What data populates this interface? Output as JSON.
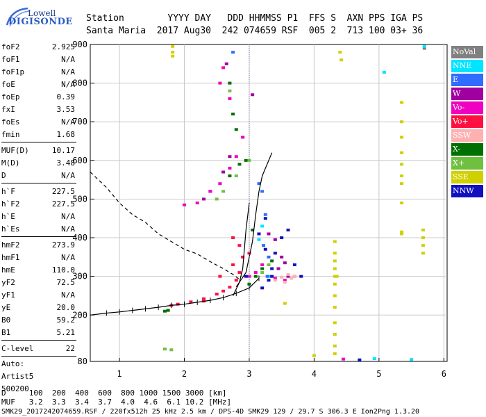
{
  "logo": {
    "brand": "Lowell",
    "product": "DIGISONDE"
  },
  "header": {
    "labels": "Station        YYYY DAY   DDD HHMMSS P1  FFS S  AXN PPS IGA PS",
    "values": "Santa Maria  2017 Aug30  242 074659 RSF  005 2  713 100 03+ 36"
  },
  "params": {
    "group1": [
      {
        "name": "foF2",
        "value": "2.925"
      },
      {
        "name": "foF1",
        "value": "N/A"
      },
      {
        "name": "foF1p",
        "value": "N/A"
      },
      {
        "name": "foE",
        "value": "N/A"
      },
      {
        "name": "foEp",
        "value": "0.39"
      },
      {
        "name": "fxI",
        "value": "3.53"
      },
      {
        "name": "foEs",
        "value": "N/A"
      },
      {
        "name": "fmin",
        "value": "1.68"
      }
    ],
    "group2": [
      {
        "name": "MUF(D)",
        "value": "10.17"
      },
      {
        "name": "M(D)",
        "value": "3.48"
      },
      {
        "name": "D",
        "value": "N/A"
      }
    ],
    "group3": [
      {
        "name": "h`F",
        "value": "227.5"
      },
      {
        "name": "h`F2",
        "value": "227.5"
      },
      {
        "name": "h`E",
        "value": "N/A"
      },
      {
        "name": "h`Es",
        "value": "N/A"
      }
    ],
    "group4": [
      {
        "name": "hmF2",
        "value": "273.9"
      },
      {
        "name": "hmF1",
        "value": "N/A"
      },
      {
        "name": "hmE",
        "value": "110.0"
      },
      {
        "name": "yF2",
        "value": "72.5"
      },
      {
        "name": "yF1",
        "value": "N/A"
      },
      {
        "name": "yE",
        "value": "20.0"
      },
      {
        "name": "B0",
        "value": "59.2"
      },
      {
        "name": "B1",
        "value": "5.21"
      }
    ],
    "group5": [
      {
        "name": "C-level",
        "value": "22"
      }
    ],
    "auto": [
      "Auto:",
      "Artist5",
      "500200"
    ]
  },
  "legend": [
    {
      "label": "NoVal",
      "color": "#808080"
    },
    {
      "label": "NNE",
      "color": "#00e5ff"
    },
    {
      "label": "E",
      "color": "#2f6cff"
    },
    {
      "label": "W",
      "color": "#a000a0"
    },
    {
      "label": "Vo-",
      "color": "#f000c0"
    },
    {
      "label": "Vo+",
      "color": "#ff1040"
    },
    {
      "label": "SSW",
      "color": "#ffb0b0"
    },
    {
      "label": "X-",
      "color": "#007000"
    },
    {
      "label": "X+",
      "color": "#70c040"
    },
    {
      "label": "SSE",
      "color": "#d0d000"
    },
    {
      "label": "NNW",
      "color": "#1010c0"
    }
  ],
  "footer": {
    "d_row": "D     100  200  400  600  800 1000 1500 3000 [km]",
    "muf_row": "MUF   3.2  3.3  3.4  3.7  4.0  4.6  6.1 10.2 [MHz]",
    "info": "SMK29_2017242074659.RSF / 220fx512h 25 kHz 2.5 km / DPS-4D SMK29 129 / 29.7 S 306.3 E Ion2Png 1.3.20"
  },
  "chart_data": {
    "type": "scatter",
    "xlabel": "",
    "ylabel": "",
    "xlim": [
      0.55,
      6.05
    ],
    "ylim": [
      80,
      900
    ],
    "xticks": [
      1,
      2,
      3,
      4,
      5,
      6
    ],
    "yticks": [
      80,
      200,
      300,
      400,
      500,
      600,
      700,
      800,
      900
    ],
    "grid": true,
    "series": [
      {
        "name": "NoVal",
        "color": "#808080",
        "points": [
          [
            5.7,
            890
          ]
        ]
      },
      {
        "name": "NNE",
        "color": "#00e5ff",
        "points": [
          [
            5.7,
            895
          ],
          [
            5.08,
            828
          ],
          [
            3.2,
            430
          ],
          [
            3.15,
            395
          ],
          [
            3.3,
            300
          ],
          [
            4.93,
            87
          ],
          [
            5.5,
            85
          ]
        ]
      },
      {
        "name": "E",
        "color": "#2f6cff",
        "points": [
          [
            3.15,
            540
          ],
          [
            3.2,
            520
          ],
          [
            3.25,
            460
          ],
          [
            3.22,
            380
          ],
          [
            3.3,
            350
          ],
          [
            2.75,
            880
          ],
          [
            3.28,
            300
          ]
        ]
      },
      {
        "name": "W",
        "color": "#a000a0",
        "points": [
          [
            3.3,
            410
          ],
          [
            3.4,
            395
          ],
          [
            3.5,
            350
          ],
          [
            3.45,
            320
          ],
          [
            3.6,
            300
          ],
          [
            2.3,
            500
          ],
          [
            2.4,
            520
          ],
          [
            2.6,
            570
          ],
          [
            2.7,
            610
          ],
          [
            2.9,
            660
          ],
          [
            2.65,
            850
          ],
          [
            3.05,
            770
          ],
          [
            3.55,
            335
          ]
        ]
      },
      {
        "name": "Vo-",
        "color": "#f000c0",
        "points": [
          [
            2.0,
            485
          ],
          [
            2.2,
            490
          ],
          [
            2.4,
            520
          ],
          [
            2.55,
            540
          ],
          [
            2.7,
            580
          ],
          [
            2.8,
            610
          ],
          [
            2.9,
            660
          ],
          [
            2.7,
            760
          ],
          [
            2.55,
            800
          ],
          [
            2.6,
            840
          ],
          [
            3.0,
            300
          ],
          [
            3.1,
            310
          ],
          [
            3.2,
            330
          ],
          [
            3.4,
            295
          ],
          [
            3.55,
            290
          ],
          [
            3.7,
            300
          ],
          [
            4.45,
            86
          ]
        ]
      },
      {
        "name": "Vo+",
        "color": "#ff1040",
        "points": [
          [
            1.9,
            228
          ],
          [
            2.1,
            234
          ],
          [
            2.3,
            242
          ],
          [
            2.5,
            254
          ],
          [
            2.6,
            262
          ],
          [
            2.7,
            272
          ],
          [
            2.8,
            290
          ],
          [
            2.85,
            310
          ],
          [
            2.75,
            330
          ],
          [
            2.9,
            350
          ],
          [
            3.0,
            360
          ],
          [
            1.8,
            225
          ],
          [
            2.3,
            236
          ],
          [
            2.55,
            300
          ],
          [
            2.75,
            400
          ],
          [
            2.85,
            380
          ]
        ]
      },
      {
        "name": "SSW",
        "color": "#ffb0b0",
        "points": [
          [
            3.4,
            290
          ],
          [
            3.5,
            298
          ],
          [
            3.6,
            305
          ],
          [
            3.7,
            300
          ],
          [
            3.55,
            285
          ],
          [
            3.65,
            295
          ]
        ]
      },
      {
        "name": "X-",
        "color": "#007000",
        "points": [
          [
            2.7,
            560
          ],
          [
            2.85,
            590
          ],
          [
            2.95,
            600
          ],
          [
            2.8,
            680
          ],
          [
            2.75,
            720
          ],
          [
            2.7,
            800
          ],
          [
            3.0,
            280
          ],
          [
            3.1,
            300
          ],
          [
            3.2,
            320
          ],
          [
            1.7,
            210
          ],
          [
            1.75,
            212
          ],
          [
            3.35,
            340
          ],
          [
            3.05,
            420
          ]
        ]
      },
      {
        "name": "X+",
        "color": "#70c040",
        "points": [
          [
            2.6,
            520
          ],
          [
            2.8,
            560
          ],
          [
            3.0,
            600
          ],
          [
            2.7,
            780
          ],
          [
            2.5,
            500
          ],
          [
            3.2,
            310
          ],
          [
            3.3,
            330
          ],
          [
            1.7,
            112
          ],
          [
            1.8,
            110
          ]
        ]
      },
      {
        "name": "SSE",
        "color": "#d0d000",
        "points": [
          [
            1.82,
            895
          ],
          [
            1.82,
            880
          ],
          [
            1.82,
            870
          ],
          [
            4.32,
            390
          ],
          [
            4.32,
            360
          ],
          [
            4.32,
            340
          ],
          [
            4.32,
            320
          ],
          [
            4.32,
            300
          ],
          [
            4.32,
            280
          ],
          [
            4.32,
            250
          ],
          [
            4.32,
            220
          ],
          [
            4.32,
            180
          ],
          [
            4.32,
            150
          ],
          [
            4.32,
            120
          ],
          [
            4.32,
            100
          ],
          [
            4.35,
            300
          ],
          [
            5.35,
            750
          ],
          [
            5.35,
            700
          ],
          [
            5.35,
            660
          ],
          [
            5.35,
            620
          ],
          [
            5.35,
            590
          ],
          [
            5.35,
            560
          ],
          [
            5.35,
            540
          ],
          [
            5.35,
            490
          ],
          [
            5.35,
            415
          ],
          [
            5.35,
            410
          ],
          [
            5.68,
            420
          ],
          [
            5.68,
            400
          ],
          [
            5.68,
            380
          ],
          [
            5.68,
            360
          ],
          [
            3.55,
            230
          ],
          [
            4.4,
            880
          ],
          [
            4.42,
            860
          ],
          [
            4.0,
            95
          ]
        ]
      },
      {
        "name": "NNW",
        "color": "#1010c0",
        "points": [
          [
            3.2,
            270
          ],
          [
            3.3,
            290
          ],
          [
            3.35,
            320
          ],
          [
            3.4,
            360
          ],
          [
            3.5,
            400
          ],
          [
            3.6,
            420
          ],
          [
            3.15,
            410
          ],
          [
            3.25,
            370
          ],
          [
            3.35,
            300
          ],
          [
            3.7,
            330
          ],
          [
            3.8,
            300
          ],
          [
            3.25,
            450
          ],
          [
            2.95,
            300
          ],
          [
            4.7,
            84
          ]
        ]
      }
    ],
    "curves": [
      {
        "name": "virtual-height trace",
        "style": "solid-ticked",
        "points": [
          [
            0.55,
            200
          ],
          [
            0.8,
            205
          ],
          [
            1.0,
            208
          ],
          [
            1.2,
            212
          ],
          [
            1.4,
            216
          ],
          [
            1.6,
            220
          ],
          [
            1.8,
            225
          ],
          [
            2.0,
            228
          ],
          [
            2.2,
            233
          ],
          [
            2.4,
            238
          ],
          [
            2.6,
            245
          ],
          [
            2.8,
            256
          ],
          [
            3.0,
            270
          ],
          [
            3.15,
            295
          ]
        ]
      },
      {
        "name": "vertical extension",
        "style": "solid",
        "points": [
          [
            2.75,
            250
          ],
          [
            2.85,
            285
          ],
          [
            2.9,
            320
          ],
          [
            2.95,
            420
          ],
          [
            3.0,
            490
          ]
        ]
      },
      {
        "name": "upper trace",
        "style": "solid",
        "points": [
          [
            2.8,
            273
          ],
          [
            2.95,
            310
          ],
          [
            3.05,
            390
          ],
          [
            3.1,
            460
          ],
          [
            3.15,
            520
          ],
          [
            3.2,
            560
          ],
          [
            3.35,
            620
          ]
        ]
      },
      {
        "name": "electron density profile",
        "style": "dashed",
        "points": [
          [
            0.55,
            570
          ],
          [
            0.8,
            530
          ],
          [
            1.0,
            490
          ],
          [
            1.2,
            460
          ],
          [
            1.4,
            440
          ],
          [
            1.6,
            410
          ],
          [
            1.8,
            390
          ],
          [
            2.0,
            370
          ],
          [
            2.2,
            358
          ],
          [
            2.4,
            338
          ],
          [
            2.6,
            320
          ],
          [
            2.75,
            305
          ],
          [
            2.85,
            292
          ]
        ]
      },
      {
        "name": "plasma line",
        "style": "dotted-vertical",
        "points": [
          [
            3.0,
            80
          ],
          [
            3.0,
            900
          ]
        ]
      }
    ]
  }
}
